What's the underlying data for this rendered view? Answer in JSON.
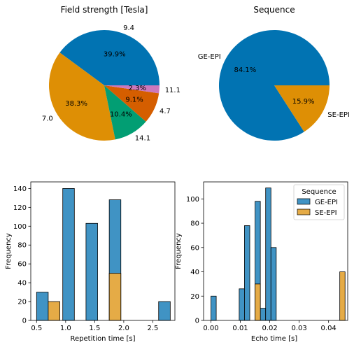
{
  "colors": {
    "blue": "#0173b2",
    "orange": "#de8f05",
    "green": "#029e73",
    "vermilion": "#d55e00",
    "pink": "#cc78bc",
    "hist_blue": "#4093c4",
    "hist_orange": "#e5ab46",
    "edge": "#000000"
  },
  "chart_data": [
    {
      "type": "pie",
      "title": "Field strength [Tesla]",
      "slices": [
        {
          "label": "9.4",
          "percent": 39.9,
          "pct_label": "39.9%",
          "color": "#0173b2"
        },
        {
          "label": "7.0",
          "percent": 38.3,
          "pct_label": "38.3%",
          "color": "#de8f05"
        },
        {
          "label": "14.1",
          "percent": 10.4,
          "pct_label": "10.4%",
          "color": "#029e73"
        },
        {
          "label": "4.7",
          "percent": 9.1,
          "pct_label": "9.1%",
          "color": "#d55e00"
        },
        {
          "label": "11.1",
          "percent": 2.3,
          "pct_label": "2.3%",
          "color": "#cc78bc"
        }
      ]
    },
    {
      "type": "pie",
      "title": "Sequence",
      "slices": [
        {
          "label": "GE-EPI",
          "percent": 84.1,
          "pct_label": "84.1%",
          "color": "#0173b2"
        },
        {
          "label": "SE-EPI",
          "percent": 15.9,
          "pct_label": "15.9%",
          "color": "#de8f05"
        }
      ]
    },
    {
      "type": "bar",
      "subtype": "histogram",
      "xlabel": "Repetition time [s]",
      "ylabel": "Frequency",
      "xlim": [
        0.4,
        2.88
      ],
      "ylim": [
        0,
        147
      ],
      "xticks": [
        0.5,
        1.0,
        1.5,
        2.0,
        2.5
      ],
      "xtick_labels": [
        "0.5",
        "1.0",
        "1.5",
        "2.0",
        "2.5"
      ],
      "yticks": [
        0,
        20,
        40,
        60,
        80,
        100,
        120,
        140
      ],
      "series": [
        {
          "name": "GE-EPI",
          "color": "#4093c4",
          "bins": [
            [
              0.5,
              0.7,
              30
            ],
            [
              0.95,
              1.15,
              140
            ],
            [
              1.35,
              1.55,
              103
            ],
            [
              1.75,
              1.95,
              128
            ],
            [
              2.6,
              2.8,
              20
            ]
          ]
        },
        {
          "name": "SE-EPI",
          "color": "#e5ab46",
          "bins": [
            [
              0.7,
              0.9,
              20
            ],
            [
              1.75,
              1.95,
              50
            ]
          ]
        }
      ]
    },
    {
      "type": "bar",
      "subtype": "histogram",
      "xlabel": "Echo time [s]",
      "ylabel": "Frequency",
      "xlim": [
        -0.0025,
        0.0465
      ],
      "ylim": [
        0,
        114
      ],
      "xticks": [
        0.0,
        0.01,
        0.02,
        0.03,
        0.04
      ],
      "xtick_labels": [
        "0.00",
        "0.01",
        "0.02",
        "0.03",
        "0.04"
      ],
      "yticks": [
        0,
        20,
        40,
        60,
        80,
        100
      ],
      "legend": {
        "title": "Sequence",
        "position": "top-right"
      },
      "series": [
        {
          "name": "GE-EPI",
          "color": "#4093c4",
          "bins": [
            [
              0.0,
              0.0018,
              20
            ],
            [
              0.0096,
              0.0114,
              26
            ],
            [
              0.0114,
              0.0132,
              78
            ],
            [
              0.015,
              0.0168,
              98
            ],
            [
              0.0168,
              0.0186,
              10
            ],
            [
              0.0186,
              0.0204,
              109
            ],
            [
              0.0204,
              0.0222,
              60
            ]
          ]
        },
        {
          "name": "SE-EPI",
          "color": "#e5ab46",
          "bins": [
            [
              0.015,
              0.0168,
              30
            ],
            [
              0.0438,
              0.0456,
              40
            ]
          ]
        }
      ]
    }
  ]
}
